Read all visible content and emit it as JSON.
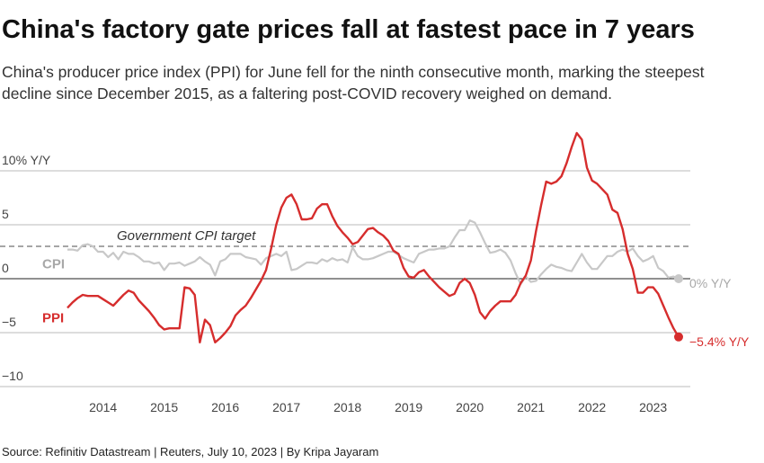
{
  "chart_data": {
    "type": "line",
    "title": "China's factory gate prices fall at fastest pace in 7 years",
    "subtitle": [
      "China's producer price index (PPI) for June fell for the ninth consecutive month, marking the steepest",
      "decline since December 2015, as a faltering post-COVID recovery weighed on demand."
    ],
    "source": "Source: Refinitiv Datastream | Reuters, July 10, 2023 | By Kripa Jayaram",
    "categories": [
      null,
      null,
      null,
      null,
      null,
      null,
      null,
      "2014",
      null,
      null,
      null,
      null,
      null,
      null,
      null,
      null,
      null,
      null,
      null,
      "2015",
      null,
      null,
      null,
      null,
      null,
      null,
      null,
      null,
      null,
      null,
      null,
      "2016",
      null,
      null,
      null,
      null,
      null,
      null,
      null,
      null,
      null,
      null,
      null,
      "2017",
      null,
      null,
      null,
      null,
      null,
      null,
      null,
      null,
      null,
      null,
      null,
      "2018",
      null,
      null,
      null,
      null,
      null,
      null,
      null,
      null,
      null,
      null,
      null,
      "2019",
      null,
      null,
      null,
      null,
      null,
      null,
      null,
      null,
      null,
      null,
      null,
      "2020",
      null,
      null,
      null,
      null,
      null,
      null,
      null,
      null,
      null,
      null,
      null,
      "2021",
      null,
      null,
      null,
      null,
      null,
      null,
      null,
      null,
      null,
      null,
      null,
      "2022",
      null,
      null,
      null,
      null,
      null,
      null,
      null,
      null,
      null,
      null,
      null,
      "2023",
      null,
      null,
      null,
      null,
      null
    ],
    "series": [
      {
        "name": "CPI",
        "color": "#c8c8c8",
        "label_color": "#a8a8a8",
        "end_label": "0% Y/Y",
        "values": [
          2.7,
          2.7,
          2.6,
          3.1,
          3.2,
          3.0,
          2.5,
          2.5,
          2.0,
          2.4,
          1.8,
          2.5,
          2.3,
          2.3,
          2.0,
          1.6,
          1.6,
          1.4,
          1.5,
          0.8,
          1.4,
          1.4,
          1.5,
          1.2,
          1.4,
          1.6,
          2.0,
          1.6,
          1.3,
          0.3,
          1.6,
          1.8,
          2.3,
          2.3,
          2.3,
          2.0,
          1.9,
          1.8,
          1.3,
          1.9,
          2.1,
          2.3,
          2.1,
          2.5,
          0.8,
          0.9,
          1.2,
          1.5,
          1.5,
          1.4,
          1.8,
          1.6,
          1.9,
          1.7,
          1.8,
          1.5,
          2.9,
          2.1,
          1.8,
          1.8,
          1.9,
          2.1,
          2.3,
          2.5,
          2.5,
          2.2,
          1.9,
          1.7,
          1.5,
          2.3,
          2.5,
          2.7,
          2.7,
          2.8,
          2.8,
          3.0,
          3.8,
          4.5,
          4.5,
          5.4,
          5.2,
          4.3,
          3.3,
          2.4,
          2.5,
          2.7,
          2.4,
          1.7,
          0.5,
          -0.5,
          0.2,
          -0.3,
          -0.2,
          0.4,
          0.9,
          1.3,
          1.1,
          1.0,
          0.8,
          0.7,
          1.5,
          2.3,
          1.5,
          0.9,
          0.9,
          1.5,
          2.1,
          2.1,
          2.5,
          2.7,
          2.5,
          2.8,
          2.1,
          1.6,
          1.8,
          2.1,
          1.0,
          0.7,
          0.1,
          0.2,
          0.0
        ]
      },
      {
        "name": "PPI",
        "color": "#d62d2d",
        "label_color": "#d62d2d",
        "end_label": "−5.4% Y/Y",
        "values": [
          -2.7,
          -2.2,
          -1.8,
          -1.5,
          -1.6,
          -1.6,
          -1.6,
          -1.9,
          -2.2,
          -2.5,
          -2.0,
          -1.5,
          -1.1,
          -1.3,
          -2.0,
          -2.5,
          -3.0,
          -3.6,
          -4.3,
          -4.7,
          -4.6,
          -4.6,
          -4.6,
          -0.8,
          -0.9,
          -1.5,
          -5.9,
          -3.8,
          -4.3,
          -5.9,
          -5.5,
          -5.0,
          -4.4,
          -3.4,
          -2.9,
          -2.5,
          -1.8,
          -1.0,
          -0.2,
          0.8,
          2.8,
          5.0,
          6.6,
          7.5,
          7.8,
          6.9,
          5.5,
          5.5,
          5.6,
          6.5,
          6.9,
          6.9,
          5.8,
          4.9,
          4.3,
          3.8,
          3.2,
          3.4,
          4.0,
          4.6,
          4.7,
          4.3,
          4.0,
          3.5,
          2.6,
          2.3,
          1.0,
          0.2,
          0.1,
          0.6,
          0.8,
          0.2,
          -0.3,
          -0.8,
          -1.2,
          -1.6,
          -1.4,
          -0.4,
          0.0,
          -0.4,
          -1.5,
          -3.1,
          -3.7,
          -3.0,
          -2.5,
          -2.1,
          -2.1,
          -2.1,
          -1.5,
          -0.4,
          0.3,
          1.7,
          4.4,
          6.8,
          9.0,
          8.8,
          9.0,
          9.5,
          10.7,
          12.2,
          13.5,
          12.9,
          10.3,
          9.1,
          8.8,
          8.3,
          7.8,
          6.4,
          6.1,
          4.6,
          2.3,
          0.9,
          -1.3,
          -1.3,
          -0.8,
          -0.8,
          -1.4,
          -2.5,
          -3.6,
          -4.6,
          -5.4
        ]
      }
    ],
    "annotations": [
      {
        "text": "Government CPI target",
        "value": 3
      }
    ],
    "ylim": [
      -10,
      14
    ],
    "yticks": [
      {
        "value": 10,
        "label": "10% Y/Y"
      },
      5,
      0,
      {
        "value": -5,
        "label": "−5"
      },
      {
        "value": -10,
        "label": "−10"
      }
    ],
    "grid": true
  }
}
